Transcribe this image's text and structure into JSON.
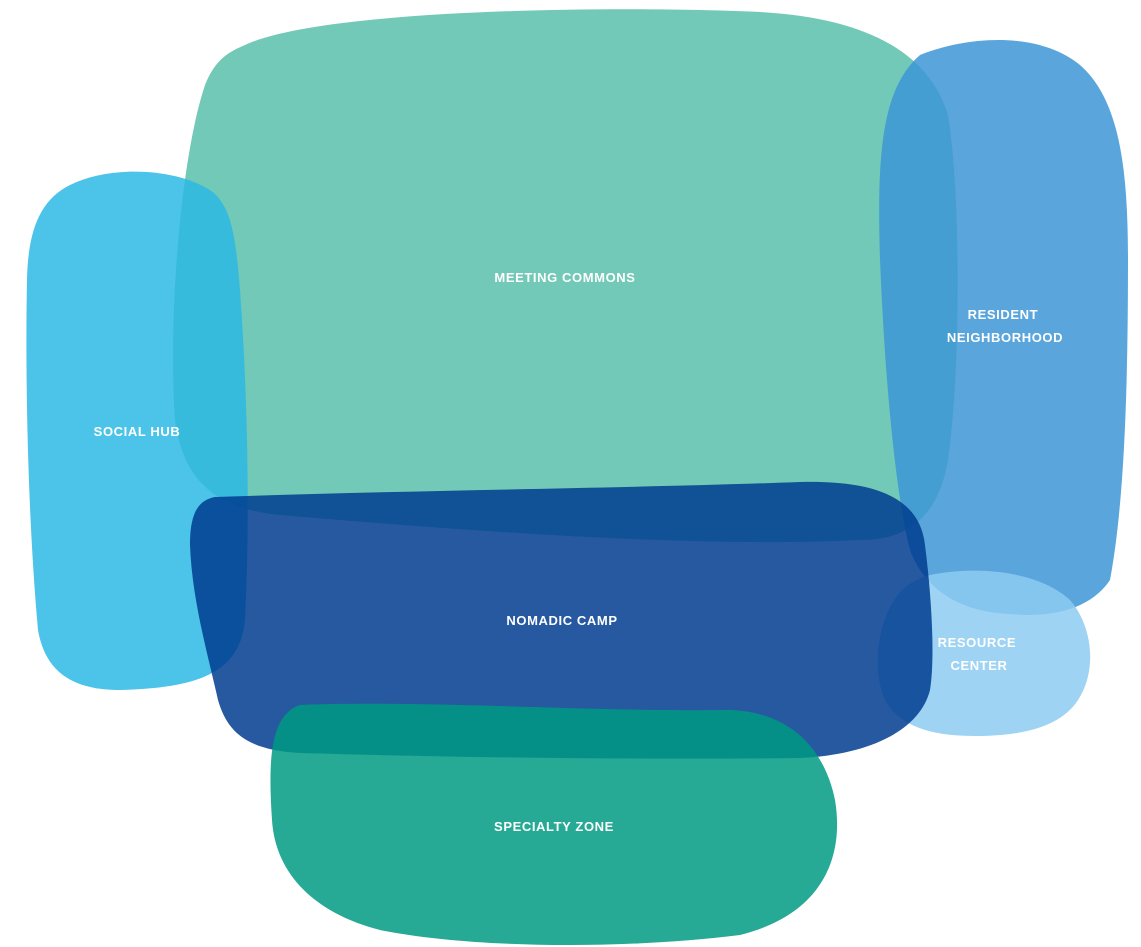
{
  "zones": {
    "meeting_commons": {
      "label": "MEETING COMMONS",
      "color": "#5bbfaa"
    },
    "resident_neighborhood": {
      "label_line1": "RESIDENT",
      "label_line2": "NEIGHBORHOOD",
      "color": "#3d97d6"
    },
    "social_hub": {
      "label": "SOCIAL HUB",
      "color": "#2db8e4"
    },
    "nomadic_camp": {
      "label": "NOMADIC CAMP",
      "color": "#003c8f"
    },
    "resource_center": {
      "label_line1": "RESOURCE",
      "label_line2": "CENTER",
      "color": "#8dcbf2"
    },
    "specialty_zone": {
      "label": "SPECIALTY ZONE",
      "color": "#009a82"
    }
  }
}
